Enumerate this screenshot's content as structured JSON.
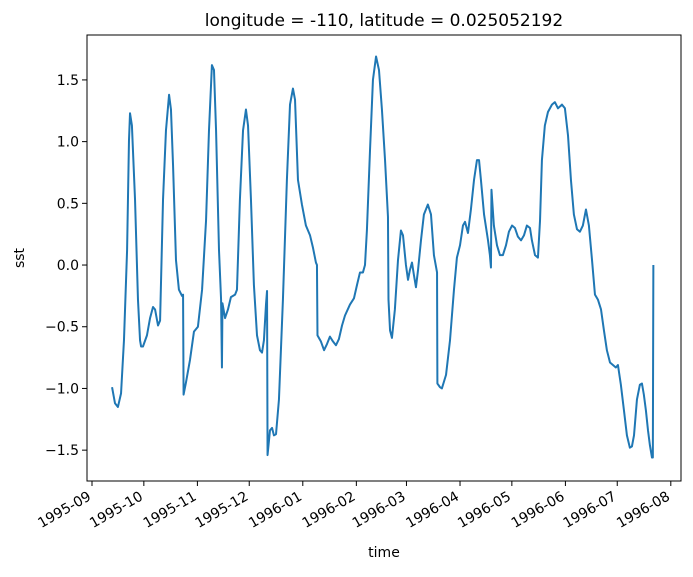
{
  "chart_data": {
    "type": "line",
    "title": "longitude = -110, latitude = 0.025052192",
    "x_label": "time",
    "y_label": "sst",
    "color": "#1f77b4",
    "grid": false,
    "xlim": [
      -2.9,
      340.9
    ],
    "ylim": [
      -1.75,
      1.864
    ],
    "xticks": [
      {
        "value": 0,
        "label": "1995-09"
      },
      {
        "value": 30,
        "label": "1995-10"
      },
      {
        "value": 61,
        "label": "1995-11"
      },
      {
        "value": 91,
        "label": "1995-12"
      },
      {
        "value": 122,
        "label": "1996-01"
      },
      {
        "value": 153,
        "label": "1996-02"
      },
      {
        "value": 182,
        "label": "1996-03"
      },
      {
        "value": 213,
        "label": "1996-04"
      },
      {
        "value": 243,
        "label": "1996-05"
      },
      {
        "value": 274,
        "label": "1996-06"
      },
      {
        "value": 304,
        "label": "1996-07"
      },
      {
        "value": 335,
        "label": "1996-08"
      }
    ],
    "yticks": [
      {
        "value": -1.5,
        "label": "−1.5"
      },
      {
        "value": -1.0,
        "label": "−1.0"
      },
      {
        "value": -0.5,
        "label": "−0.5"
      },
      {
        "value": 0,
        "label": "0.0"
      },
      0.5,
      {
        "value": 1,
        "label": "1.0"
      },
      1.5
    ],
    "x": [
      11.6,
      13.3,
      15.0,
      16.8,
      18.5,
      20.3,
      21.4,
      22.0,
      23.1,
      24.9,
      26.6,
      27.8,
      28.4,
      29.5,
      31.8,
      33.6,
      35.3,
      36.5,
      38.2,
      39.4,
      41.1,
      42.8,
      44.6,
      45.7,
      46.9,
      48.6,
      50.3,
      52.1,
      52.7,
      53.0,
      54.4,
      56.7,
      59.0,
      61.3,
      63.7,
      66.0,
      67.7,
      69.4,
      70.6,
      71.8,
      73.5,
      74.7,
      75.2,
      75.5,
      77.0,
      78.7,
      80.4,
      82.8,
      83.9,
      85.6,
      87.4,
      89.1,
      90.3,
      92.0,
      93.7,
      95.5,
      97.2,
      98.4,
      99.5,
      100.7,
      101.3,
      101.6,
      103.0,
      104.2,
      105.3,
      106.5,
      108.2,
      110.5,
      112.8,
      114.6,
      116.3,
      117.5,
      119.2,
      121.5,
      123.8,
      126.2,
      127.9,
      129.6,
      130.2,
      130.5,
      132.5,
      134.3,
      136.0,
      137.7,
      139.5,
      141.2,
      142.9,
      144.7,
      146.4,
      149.3,
      151.6,
      153.4,
      155.1,
      156.8,
      158.0,
      159.1,
      160.9,
      162.6,
      164.4,
      166.1,
      167.8,
      169.6,
      171.3,
      171.6,
      172.5,
      173.6,
      175.3,
      177.1,
      178.8,
      180.0,
      181.7,
      182.9,
      184.0,
      185.2,
      186.3,
      187.5,
      188.7,
      190.4,
      192.1,
      194.4,
      196.2,
      197.9,
      199.7,
      199.9,
      201.4,
      202.5,
      204.9,
      207.2,
      209.5,
      211.2,
      213.0,
      214.7,
      215.9,
      217.6,
      219.3,
      221.1,
      222.8,
      224.0,
      225.1,
      226.9,
      229.2,
      230.3,
      230.9,
      231.2,
      232.6,
      234.4,
      236.1,
      237.8,
      239.6,
      241.3,
      243.1,
      244.8,
      246.5,
      248.3,
      250.0,
      251.7,
      253.5,
      254.6,
      256.4,
      258.1,
      259.3,
      260.4,
      262.1,
      263.9,
      266.2,
      267.9,
      269.7,
      272.0,
      273.7,
      275.5,
      277.2,
      278.9,
      280.7,
      282.4,
      284.1,
      285.9,
      287.6,
      289.4,
      291.1,
      292.8,
      294.6,
      296.3,
      298.0,
      299.8,
      301.5,
      303.2,
      304.4,
      306.1,
      307.9,
      309.6,
      311.3,
      312.5,
      313.7,
      315.4,
      317.1,
      318.3,
      319.4,
      320.6,
      321.8,
      322.9,
      324.1,
      324.6,
      324.9
    ],
    "values": [
      -0.99,
      -1.12,
      -1.15,
      -1.04,
      -0.61,
      0.12,
      1.01,
      1.23,
      1.13,
      0.53,
      -0.28,
      -0.61,
      -0.66,
      -0.66,
      -0.57,
      -0.43,
      -0.34,
      -0.36,
      -0.49,
      -0.45,
      0.53,
      1.09,
      1.38,
      1.26,
      0.81,
      0.04,
      -0.2,
      -0.25,
      -0.24,
      -1.05,
      -0.95,
      -0.77,
      -0.54,
      -0.5,
      -0.2,
      0.36,
      1.09,
      1.62,
      1.58,
      1.09,
      0.12,
      -0.28,
      -0.83,
      -0.31,
      -0.43,
      -0.36,
      -0.26,
      -0.24,
      -0.2,
      0.53,
      1.09,
      1.26,
      1.13,
      0.53,
      -0.16,
      -0.57,
      -0.69,
      -0.71,
      -0.61,
      -0.32,
      -0.21,
      -1.54,
      -1.34,
      -1.32,
      -1.38,
      -1.37,
      -1.09,
      -0.28,
      0.69,
      1.3,
      1.43,
      1.34,
      0.69,
      0.49,
      0.32,
      0.24,
      0.14,
      0.02,
      0.0,
      -0.57,
      -0.62,
      -0.69,
      -0.64,
      -0.58,
      -0.62,
      -0.65,
      -0.6,
      -0.49,
      -0.41,
      -0.32,
      -0.27,
      -0.16,
      -0.06,
      -0.06,
      0.0,
      0.28,
      0.93,
      1.5,
      1.69,
      1.58,
      1.26,
      0.85,
      0.39,
      -0.28,
      -0.53,
      -0.59,
      -0.36,
      0.04,
      0.28,
      0.24,
      0.0,
      -0.12,
      -0.04,
      0.02,
      -0.08,
      -0.18,
      -0.04,
      0.2,
      0.41,
      0.49,
      0.41,
      0.08,
      -0.06,
      -0.96,
      -0.99,
      -1.0,
      -0.89,
      -0.61,
      -0.2,
      0.06,
      0.16,
      0.32,
      0.35,
      0.26,
      0.45,
      0.69,
      0.85,
      0.85,
      0.69,
      0.41,
      0.2,
      0.08,
      -0.02,
      0.61,
      0.32,
      0.16,
      0.08,
      0.08,
      0.16,
      0.27,
      0.32,
      0.3,
      0.23,
      0.2,
      0.24,
      0.32,
      0.3,
      0.2,
      0.08,
      0.06,
      0.36,
      0.85,
      1.13,
      1.24,
      1.3,
      1.32,
      1.27,
      1.3,
      1.27,
      1.05,
      0.69,
      0.41,
      0.29,
      0.27,
      0.32,
      0.45,
      0.32,
      0.04,
      -0.24,
      -0.28,
      -0.36,
      -0.53,
      -0.69,
      -0.79,
      -0.81,
      -0.83,
      -0.81,
      -0.97,
      -1.18,
      -1.38,
      -1.48,
      -1.47,
      -1.38,
      -1.09,
      -0.97,
      -0.96,
      -1.05,
      -1.18,
      -1.34,
      -1.46,
      -1.56,
      -1.56,
      0.0
    ]
  }
}
